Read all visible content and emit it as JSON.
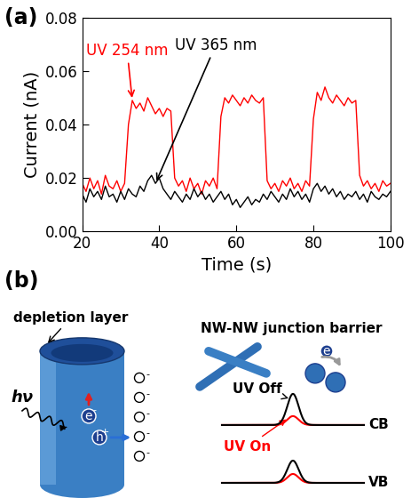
{
  "panel_labels": [
    "(a)",
    "(b)"
  ],
  "chart_data": {
    "type": "line",
    "x_label": "Time (s)",
    "y_label": "Current (nA)",
    "xlim": [
      20,
      100
    ],
    "xticks": [
      20,
      40,
      60,
      80,
      100
    ],
    "ylim": [
      0,
      0.08
    ],
    "yticks": [
      {
        "value": 0,
        "label": "0.00"
      },
      {
        "value": 0.02,
        "label": "0.02"
      },
      {
        "value": 0.04,
        "label": "0.04"
      },
      {
        "value": 0.06,
        "label": "0.06"
      },
      {
        "value": 0.08,
        "label": "0.08"
      }
    ],
    "x": [
      20,
      21,
      22,
      23,
      24,
      25,
      26,
      27,
      28,
      29,
      30,
      31,
      32,
      33,
      34,
      35,
      36,
      37,
      38,
      39,
      40,
      41,
      42,
      43,
      44,
      45,
      46,
      47,
      48,
      49,
      50,
      51,
      52,
      53,
      54,
      55,
      56,
      57,
      58,
      59,
      60,
      61,
      62,
      63,
      64,
      65,
      66,
      67,
      68,
      69,
      70,
      71,
      72,
      73,
      74,
      75,
      76,
      77,
      78,
      79,
      80,
      81,
      82,
      83,
      84,
      85,
      86,
      87,
      88,
      89,
      90,
      91,
      92,
      93,
      94,
      95,
      96,
      97,
      98,
      99,
      100
    ],
    "series": [
      {
        "name": "UV 254 nm",
        "color": "#ff0000",
        "values": [
          0.018,
          0.015,
          0.02,
          0.016,
          0.019,
          0.014,
          0.021,
          0.017,
          0.016,
          0.019,
          0.015,
          0.018,
          0.04,
          0.049,
          0.046,
          0.048,
          0.045,
          0.05,
          0.047,
          0.044,
          0.046,
          0.043,
          0.046,
          0.045,
          0.02,
          0.017,
          0.019,
          0.015,
          0.02,
          0.016,
          0.018,
          0.014,
          0.019,
          0.017,
          0.02,
          0.016,
          0.043,
          0.05,
          0.048,
          0.051,
          0.049,
          0.047,
          0.05,
          0.048,
          0.051,
          0.049,
          0.048,
          0.05,
          0.019,
          0.016,
          0.018,
          0.015,
          0.019,
          0.017,
          0.02,
          0.016,
          0.018,
          0.015,
          0.019,
          0.017,
          0.042,
          0.052,
          0.049,
          0.054,
          0.05,
          0.048,
          0.051,
          0.049,
          0.047,
          0.05,
          0.048,
          0.049,
          0.021,
          0.017,
          0.019,
          0.016,
          0.018,
          0.015,
          0.019,
          0.017,
          0.018
        ]
      },
      {
        "name": "UV 365 nm",
        "color": "#000000",
        "values": [
          0.014,
          0.011,
          0.016,
          0.013,
          0.015,
          0.012,
          0.017,
          0.013,
          0.014,
          0.011,
          0.015,
          0.012,
          0.016,
          0.014,
          0.013,
          0.017,
          0.015,
          0.019,
          0.021,
          0.018,
          0.02,
          0.016,
          0.014,
          0.012,
          0.015,
          0.013,
          0.011,
          0.014,
          0.012,
          0.016,
          0.013,
          0.015,
          0.012,
          0.014,
          0.011,
          0.013,
          0.015,
          0.012,
          0.014,
          0.01,
          0.012,
          0.009,
          0.011,
          0.013,
          0.01,
          0.012,
          0.011,
          0.014,
          0.012,
          0.015,
          0.013,
          0.011,
          0.014,
          0.012,
          0.016,
          0.013,
          0.015,
          0.012,
          0.014,
          0.011,
          0.016,
          0.018,
          0.015,
          0.017,
          0.014,
          0.016,
          0.013,
          0.015,
          0.012,
          0.014,
          0.013,
          0.015,
          0.012,
          0.014,
          0.011,
          0.015,
          0.013,
          0.012,
          0.014,
          0.013,
          0.015
        ]
      }
    ]
  },
  "diagram": {
    "nanowire": {
      "label": "depletion layer",
      "photon": "hν",
      "carriers": [
        {
          "symbol": "e",
          "charge": "-",
          "arrow_color": "#e02020"
        },
        {
          "symbol": "h",
          "charge": "+",
          "arrow_color": "#2a6fd6"
        }
      ],
      "surface_ions": {
        "symbol": "O",
        "charge": "-",
        "count": 5
      }
    },
    "junction": {
      "title": "NW-NW junction barrier",
      "electron": {
        "symbol": "e",
        "charge": "-"
      },
      "curves": [
        {
          "label": "UV Off",
          "color": "#000000"
        },
        {
          "label": "UV On",
          "color": "#ff0000"
        }
      ],
      "bands": [
        "CB",
        "VB"
      ]
    }
  }
}
